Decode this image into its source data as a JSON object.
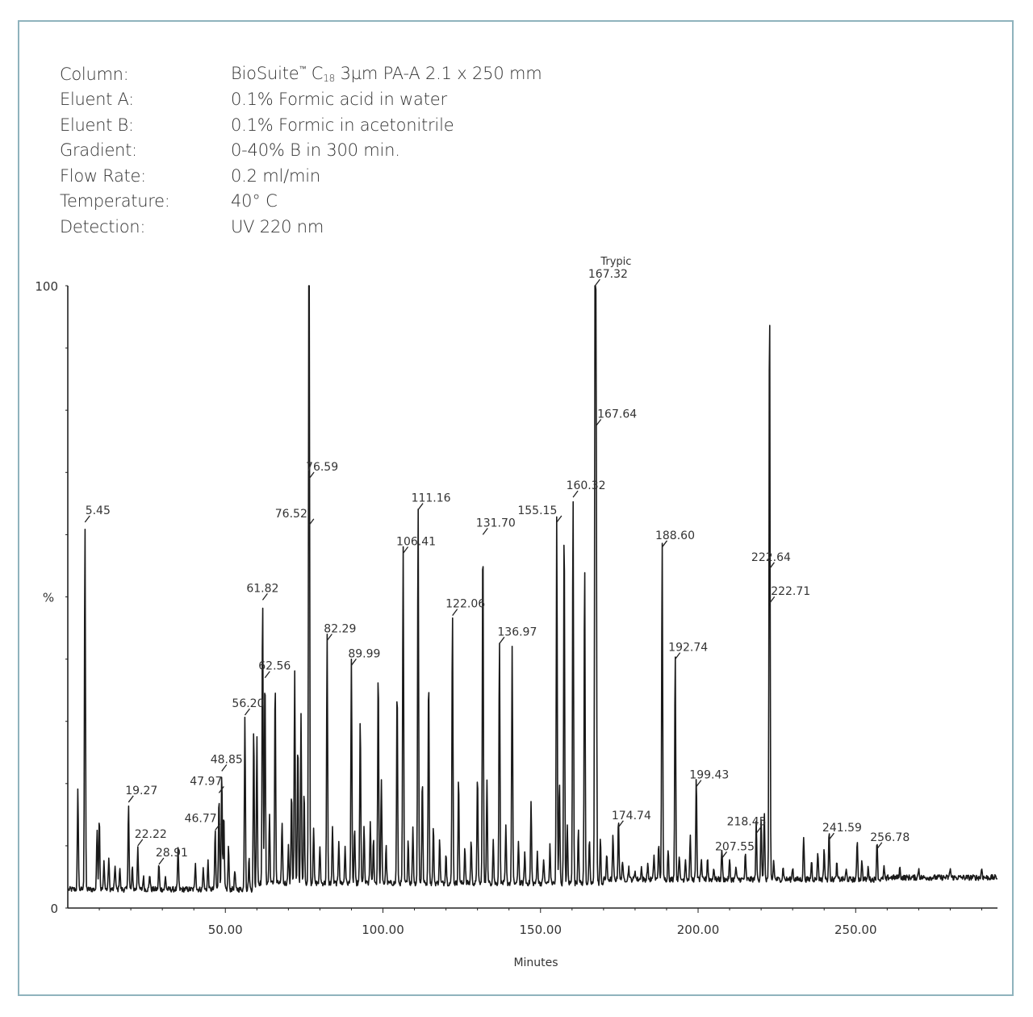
{
  "conditions": [
    {
      "label": "Column:",
      "value_pre": "BioSuite",
      "value_sup": "™",
      "value_mid": " C",
      "value_sub": "18",
      "value_post": " 3µm PA-A 2.1 x 250 mm"
    },
    {
      "label": "Eluent A:",
      "value": "0.1% Formic acid in water"
    },
    {
      "label": "Eluent B:",
      "value": "0.1% Formic in acetonitrile"
    },
    {
      "label": "Gradient:",
      "value": "0-40% B in 300 min."
    },
    {
      "label": "Flow Rate:",
      "value": "0.2 ml/min"
    },
    {
      "label": "Temperature:",
      "value": "40° C"
    },
    {
      "label": "Detection:",
      "value": "UV 220 nm"
    }
  ],
  "chart_data": {
    "type": "line",
    "xlabel": "Minutes",
    "ylabel": "%",
    "xlim": [
      0,
      295
    ],
    "ylim": [
      0,
      100
    ],
    "x_ticks": [
      "50.00",
      "100.00",
      "150.00",
      "200.00",
      "250.00"
    ],
    "x_tick_values": [
      50,
      100,
      150,
      200,
      250
    ],
    "y_ticks": [
      "0",
      "100"
    ],
    "y_tick_values": [
      0,
      100
    ],
    "annotations": [
      "Trypic"
    ],
    "baseline_percent": 3.0,
    "peaks": [
      {
        "x": 3.2,
        "y": 19.0
      },
      {
        "x": 5.45,
        "y": 62.0,
        "label": "5.45"
      },
      {
        "x": 9.3,
        "y": 13.0
      },
      {
        "x": 10.0,
        "y": 15.0
      },
      {
        "x": 11.5,
        "y": 7.5
      },
      {
        "x": 13.0,
        "y": 8.0
      },
      {
        "x": 15.0,
        "y": 7.0
      },
      {
        "x": 16.5,
        "y": 6.5
      },
      {
        "x": 19.27,
        "y": 17.0,
        "label": "19.27"
      },
      {
        "x": 20.5,
        "y": 6.5
      },
      {
        "x": 22.22,
        "y": 10.0,
        "label": "22.22"
      },
      {
        "x": 24.0,
        "y": 5.0
      },
      {
        "x": 26.0,
        "y": 5.5
      },
      {
        "x": 28.91,
        "y": 7.0,
        "label": "28.91"
      },
      {
        "x": 31.0,
        "y": 5.0
      },
      {
        "x": 35.0,
        "y": 9.5
      },
      {
        "x": 40.5,
        "y": 7.5
      },
      {
        "x": 43.0,
        "y": 6.5
      },
      {
        "x": 44.5,
        "y": 7.5
      },
      {
        "x": 46.77,
        "y": 12.5,
        "label": "46.77"
      },
      {
        "x": 47.97,
        "y": 18.5,
        "label": "47.97"
      },
      {
        "x": 48.85,
        "y": 22.0,
        "label": "48.85"
      },
      {
        "x": 49.5,
        "y": 15.0
      },
      {
        "x": 51.0,
        "y": 10.0
      },
      {
        "x": 53.0,
        "y": 6.0
      },
      {
        "x": 56.2,
        "y": 31.0,
        "label": "56.20"
      },
      {
        "x": 57.5,
        "y": 8.0
      },
      {
        "x": 59.0,
        "y": 29.0
      },
      {
        "x": 60.0,
        "y": 27.0
      },
      {
        "x": 61.82,
        "y": 49.5,
        "label": "61.82"
      },
      {
        "x": 62.56,
        "y": 37.0,
        "label": "62.56"
      },
      {
        "x": 64.0,
        "y": 14.0
      },
      {
        "x": 65.8,
        "y": 36.0
      },
      {
        "x": 68.0,
        "y": 13.0
      },
      {
        "x": 70.0,
        "y": 9.0
      },
      {
        "x": 71.0,
        "y": 18.0
      },
      {
        "x": 72.0,
        "y": 37.0
      },
      {
        "x": 73.0,
        "y": 26.0
      },
      {
        "x": 74.0,
        "y": 30.0
      },
      {
        "x": 75.0,
        "y": 18.0
      },
      {
        "x": 76.52,
        "y": 61.5,
        "label": "76.52"
      },
      {
        "x": 76.59,
        "y": 69.0,
        "label": "76.59"
      },
      {
        "x": 78.0,
        "y": 12.0
      },
      {
        "x": 80.0,
        "y": 9.0
      },
      {
        "x": 82.29,
        "y": 43.0,
        "label": "82.29"
      },
      {
        "x": 84.0,
        "y": 12.0
      },
      {
        "x": 86.0,
        "y": 10.0
      },
      {
        "x": 88.0,
        "y": 9.0
      },
      {
        "x": 89.99,
        "y": 39.0,
        "label": "89.99"
      },
      {
        "x": 91.0,
        "y": 12.0
      },
      {
        "x": 92.8,
        "y": 30.0
      },
      {
        "x": 94.0,
        "y": 12.0
      },
      {
        "x": 96.0,
        "y": 13.0
      },
      {
        "x": 97.0,
        "y": 10.0
      },
      {
        "x": 98.5,
        "y": 38.0
      },
      {
        "x": 99.5,
        "y": 20.0
      },
      {
        "x": 101.0,
        "y": 9.0
      },
      {
        "x": 104.5,
        "y": 35.0
      },
      {
        "x": 106.41,
        "y": 57.0,
        "label": "106.41"
      },
      {
        "x": 108.0,
        "y": 10.0
      },
      {
        "x": 109.5,
        "y": 12.0
      },
      {
        "x": 111.16,
        "y": 64.0,
        "label": "111.16"
      },
      {
        "x": 112.5,
        "y": 20.0
      },
      {
        "x": 114.5,
        "y": 37.0
      },
      {
        "x": 116.0,
        "y": 12.0
      },
      {
        "x": 118.0,
        "y": 10.0
      },
      {
        "x": 120.0,
        "y": 8.0
      },
      {
        "x": 122.06,
        "y": 47.0,
        "label": "122.06"
      },
      {
        "x": 124.0,
        "y": 20.0
      },
      {
        "x": 126.0,
        "y": 9.0
      },
      {
        "x": 128.0,
        "y": 10.0
      },
      {
        "x": 130.0,
        "y": 21.0
      },
      {
        "x": 131.7,
        "y": 60.0,
        "label": "131.70"
      },
      {
        "x": 133.0,
        "y": 20.0
      },
      {
        "x": 135.0,
        "y": 10.0
      },
      {
        "x": 136.97,
        "y": 42.5,
        "label": "136.97"
      },
      {
        "x": 139.0,
        "y": 12.0
      },
      {
        "x": 141.0,
        "y": 41.0
      },
      {
        "x": 143.0,
        "y": 10.0
      },
      {
        "x": 145.0,
        "y": 8.0
      },
      {
        "x": 147.0,
        "y": 16.0
      },
      {
        "x": 149.0,
        "y": 8.0
      },
      {
        "x": 151.0,
        "y": 7.0
      },
      {
        "x": 153.0,
        "y": 9.0
      },
      {
        "x": 155.15,
        "y": 62.0,
        "label": "155.15"
      },
      {
        "x": 156.0,
        "y": 20.0
      },
      {
        "x": 157.5,
        "y": 61.5
      },
      {
        "x": 158.5,
        "y": 12.0
      },
      {
        "x": 160.32,
        "y": 66.0,
        "label": "160.32"
      },
      {
        "x": 162.0,
        "y": 12.0
      },
      {
        "x": 164.0,
        "y": 54.5
      },
      {
        "x": 165.5,
        "y": 10.0
      },
      {
        "x": 167.32,
        "y": 100.0,
        "label": "167.32"
      },
      {
        "x": 167.64,
        "y": 77.5,
        "label": "167.64"
      },
      {
        "x": 169.0,
        "y": 10.0
      },
      {
        "x": 171.0,
        "y": 7.0
      },
      {
        "x": 173.0,
        "y": 10.0
      },
      {
        "x": 174.74,
        "y": 13.0,
        "label": "174.74"
      },
      {
        "x": 176.0,
        "y": 6.0
      },
      {
        "x": 178.0,
        "y": 5.0
      },
      {
        "x": 180.0,
        "y": 4.5
      },
      {
        "x": 182.0,
        "y": 5.0
      },
      {
        "x": 184.0,
        "y": 5.5
      },
      {
        "x": 186.0,
        "y": 7.0
      },
      {
        "x": 187.5,
        "y": 9.0
      },
      {
        "x": 188.6,
        "y": 58.0,
        "label": "188.60"
      },
      {
        "x": 190.5,
        "y": 8.0
      },
      {
        "x": 192.74,
        "y": 40.0,
        "label": "192.74"
      },
      {
        "x": 194.0,
        "y": 7.0
      },
      {
        "x": 196.0,
        "y": 6.5
      },
      {
        "x": 197.5,
        "y": 10.0
      },
      {
        "x": 199.43,
        "y": 19.5,
        "label": "199.43"
      },
      {
        "x": 201.0,
        "y": 6.0
      },
      {
        "x": 203.0,
        "y": 6.5
      },
      {
        "x": 205.0,
        "y": 5.0
      },
      {
        "x": 207.55,
        "y": 8.0,
        "label": "207.55"
      },
      {
        "x": 210.0,
        "y": 6.0
      },
      {
        "x": 212.0,
        "y": 5.0
      },
      {
        "x": 215.0,
        "y": 7.0
      },
      {
        "x": 218.45,
        "y": 12.0,
        "label": "218.45"
      },
      {
        "x": 220.0,
        "y": 13.0
      },
      {
        "x": 221.0,
        "y": 14.0
      },
      {
        "x": 222.64,
        "y": 54.5,
        "label": "222.64"
      },
      {
        "x": 222.71,
        "y": 49.0,
        "label": "222.71"
      },
      {
        "x": 224.0,
        "y": 6.0
      },
      {
        "x": 227.0,
        "y": 5.0
      },
      {
        "x": 230.0,
        "y": 5.0
      },
      {
        "x": 233.5,
        "y": 10.0
      },
      {
        "x": 236.0,
        "y": 6.0
      },
      {
        "x": 238.0,
        "y": 7.5
      },
      {
        "x": 240.0,
        "y": 8.0
      },
      {
        "x": 241.59,
        "y": 11.0,
        "label": "241.59"
      },
      {
        "x": 244.0,
        "y": 5.5
      },
      {
        "x": 247.0,
        "y": 4.5
      },
      {
        "x": 250.5,
        "y": 9.5
      },
      {
        "x": 252.0,
        "y": 6.0
      },
      {
        "x": 254.0,
        "y": 5.0
      },
      {
        "x": 256.78,
        "y": 9.5,
        "label": "256.78"
      },
      {
        "x": 259.0,
        "y": 5.0
      },
      {
        "x": 264.0,
        "y": 4.5
      },
      {
        "x": 270.0,
        "y": 4.5
      },
      {
        "x": 280.0,
        "y": 4.5
      },
      {
        "x": 290.0,
        "y": 4.5
      }
    ]
  }
}
